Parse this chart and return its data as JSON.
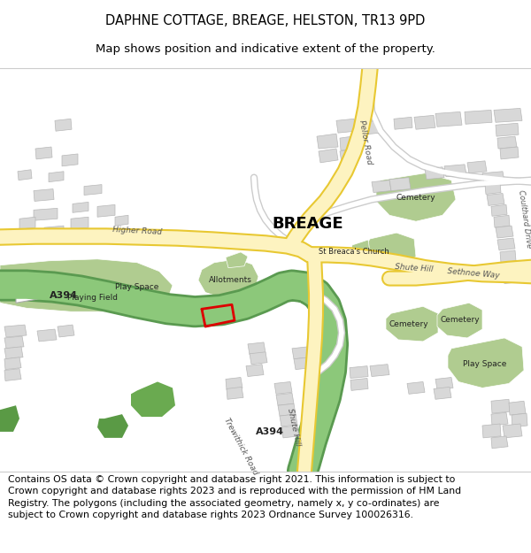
{
  "title_line1": "DAPHNE COTTAGE, BREAGE, HELSTON, TR13 9PD",
  "title_line2": "Map shows position and indicative extent of the property.",
  "footer_text": "Contains OS data © Crown copyright and database right 2021. This information is subject to Crown copyright and database rights 2023 and is reproduced with the permission of HM Land Registry. The polygons (including the associated geometry, namely x, y co-ordinates) are subject to Crown copyright and database rights 2023 Ordnance Survey 100026316.",
  "title_fontsize": 10.5,
  "subtitle_fontsize": 9.5,
  "footer_fontsize": 7.8,
  "bg_color": "#ffffff",
  "road_yellow_fill": "#fdf3c0",
  "road_yellow_edge": "#e8c832",
  "green_area": "#b0cc90",
  "building_color": "#d8d8d8",
  "building_edge": "#b8b8b8",
  "plot_outline": "#dd0000",
  "a394_green": "#8cc87a",
  "a394_green_edge": "#5a9a50",
  "white_road_fill": "#ffffff",
  "white_road_edge": "#cccccc",
  "text_road": "#555555",
  "text_dark": "#222222"
}
